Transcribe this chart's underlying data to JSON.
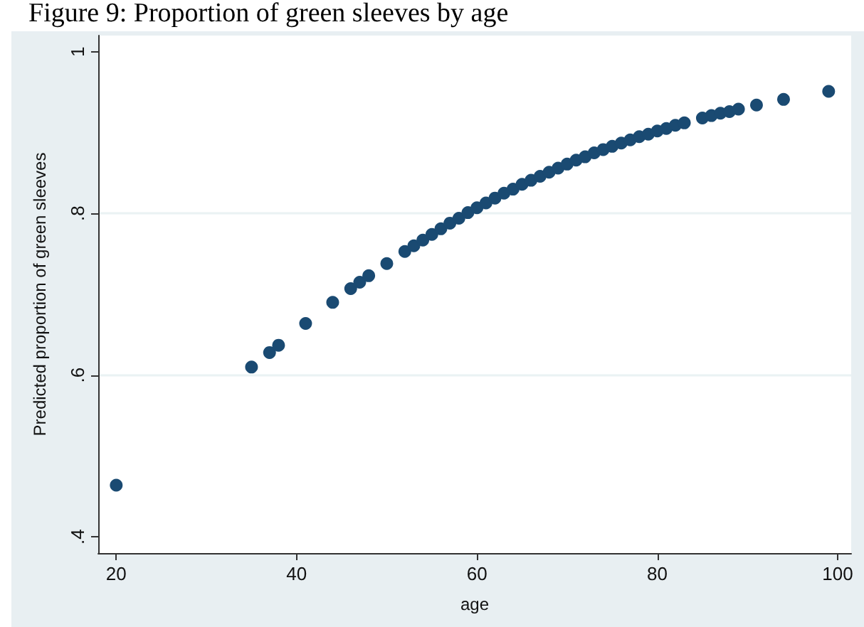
{
  "chart_data": {
    "type": "scatter",
    "title": "Figure 9: Proportion of green sleeves by age",
    "xlabel": "age",
    "ylabel": "Predicted proportion of green sleeves",
    "x": [
      20,
      35,
      37,
      38,
      41,
      44,
      46,
      47,
      48,
      50,
      52,
      53,
      54,
      55,
      56,
      57,
      58,
      59,
      60,
      61,
      62,
      63,
      64,
      65,
      66,
      67,
      68,
      69,
      70,
      71,
      72,
      73,
      74,
      75,
      76,
      77,
      78,
      79,
      80,
      81,
      82,
      83,
      85,
      86,
      87,
      88,
      89,
      91,
      94,
      99
    ],
    "series": [
      {
        "color": "#1a4a72",
        "values": [
          0.464,
          0.61,
          0.628,
          0.637,
          0.664,
          0.69,
          0.707,
          0.715,
          0.723,
          0.738,
          0.753,
          0.76,
          0.767,
          0.774,
          0.781,
          0.788,
          0.794,
          0.801,
          0.807,
          0.813,
          0.819,
          0.825,
          0.83,
          0.836,
          0.841,
          0.846,
          0.851,
          0.856,
          0.861,
          0.866,
          0.87,
          0.875,
          0.879,
          0.883,
          0.887,
          0.891,
          0.895,
          0.898,
          0.902,
          0.905,
          0.909,
          0.912,
          0.918,
          0.921,
          0.924,
          0.926,
          0.929,
          0.934,
          0.941,
          0.951
        ]
      }
    ],
    "xlim": [
      18,
      101.5
    ],
    "xticks": [
      20,
      40,
      60,
      80,
      100
    ],
    "ylim": [
      0.38,
      1.02
    ],
    "yticks": [
      {
        "value": 0.4,
        "label": ".4"
      },
      {
        "value": 0.6,
        "label": ".6"
      },
      {
        "value": 0.8,
        "label": ".8"
      },
      {
        "value": 1,
        "label": "1"
      }
    ],
    "grid": "y",
    "marker": "circle"
  }
}
